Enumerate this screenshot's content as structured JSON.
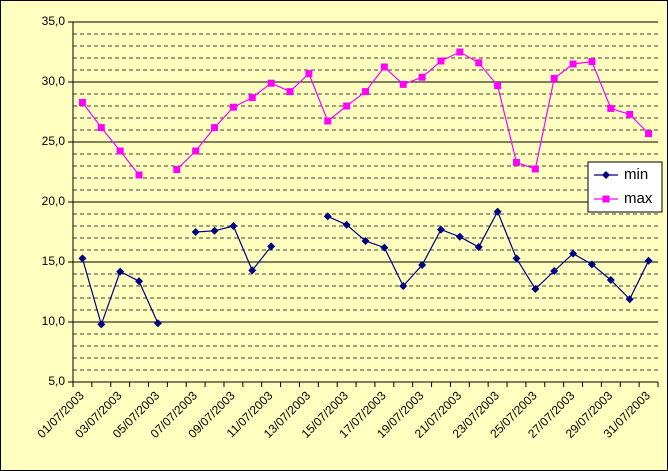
{
  "chart_data": {
    "type": "line",
    "categories": [
      "01/07/2003",
      null,
      "03/07/2003",
      null,
      "05/07/2003",
      null,
      "07/07/2003",
      null,
      "09/07/2003",
      null,
      "11/07/2003",
      null,
      "13/07/2003",
      null,
      "15/07/2003",
      null,
      "17/07/2003",
      null,
      "19/07/2003",
      null,
      "21/07/2003",
      null,
      "23/07/2003",
      null,
      "25/07/2003",
      null,
      "27/07/2003",
      null,
      "29/07/2003",
      null,
      "31/07/2003"
    ],
    "series": [
      {
        "name": "min",
        "color": "#000080",
        "marker": "diamond",
        "values": [
          15.3,
          9.8,
          14.2,
          13.4,
          9.9,
          null,
          17.5,
          17.6,
          18.0,
          14.3,
          16.3,
          null,
          null,
          18.8,
          18.1,
          16.75,
          16.2,
          13.0,
          14.75,
          17.7,
          17.1,
          16.25,
          19.2,
          15.3,
          12.75,
          14.25,
          15.7,
          14.8,
          13.5,
          11.9,
          15.1
        ]
      },
      {
        "name": "max",
        "color": "#ff00ff",
        "marker": "square",
        "values": [
          28.3,
          26.2,
          24.25,
          22.25,
          null,
          22.7,
          24.25,
          26.2,
          27.9,
          28.7,
          29.9,
          29.2,
          30.7,
          26.75,
          28.0,
          29.2,
          31.25,
          29.8,
          30.4,
          31.75,
          32.5,
          31.6,
          29.7,
          23.3,
          22.75,
          30.3,
          31.5,
          31.7,
          27.8,
          27.3,
          25.7
        ]
      }
    ],
    "ylim": [
      5,
      35
    ],
    "yticks": [
      {
        "value": 5,
        "label": "5,0"
      },
      {
        "value": 10,
        "label": "10,0"
      },
      {
        "value": 15,
        "label": "15,0"
      },
      {
        "value": 20,
        "label": "20,0"
      },
      {
        "value": 25,
        "label": "25,0"
      },
      {
        "value": 30,
        "label": "30,0"
      },
      {
        "value": 35,
        "label": "35,0"
      }
    ],
    "y_minor_gridlines": [
      6,
      7,
      8,
      9,
      11,
      12,
      13,
      14,
      16,
      17,
      18,
      19,
      21,
      22,
      23,
      24,
      26,
      27,
      28,
      29,
      31,
      32,
      33,
      34
    ],
    "grid": true,
    "legend": "right"
  }
}
